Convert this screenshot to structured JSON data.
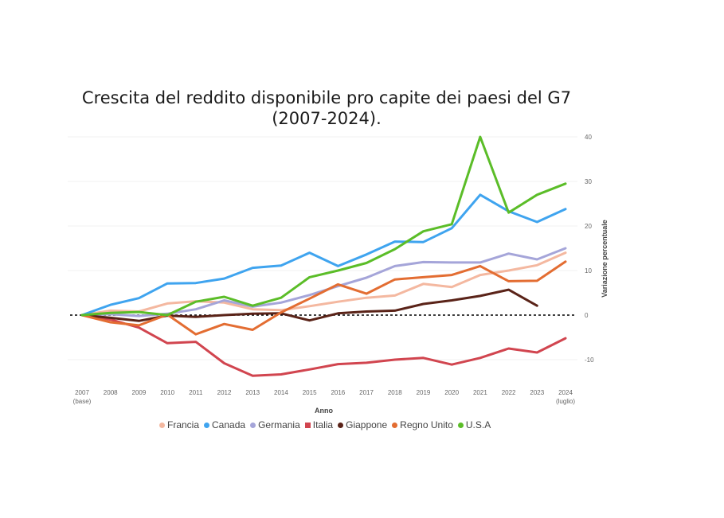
{
  "chart_data": {
    "type": "line",
    "title_line1": "Crescita del reddito disponibile pro capite dei paesi del G7",
    "title_line2": "(2007-2024).",
    "xlabel": "Anno",
    "ylabel": "Variazione percentuale",
    "x": [
      "2007",
      "2008",
      "2009",
      "2010",
      "2011",
      "2012",
      "2013",
      "2014",
      "2015",
      "2016",
      "2017",
      "2018",
      "2019",
      "2020",
      "2021",
      "2022",
      "2023",
      "2024"
    ],
    "x_sublabels": {
      "0": "(base)",
      "17": "(luglio)"
    },
    "ylim": [
      -16,
      43
    ],
    "yticks": [
      -10,
      0,
      10,
      20,
      30,
      40
    ],
    "y_axis_position": "right",
    "baseline": 0,
    "legend_position": "bottom",
    "series": [
      {
        "name": "Francia",
        "color": "#f4b8a0",
        "values": [
          0,
          1.0,
          0.8,
          2.6,
          3.1,
          2.8,
          1.3,
          1.1,
          2.0,
          3.0,
          3.9,
          4.4,
          7.0,
          6.3,
          9.0,
          10.0,
          11.2,
          14.0
        ]
      },
      {
        "name": "Canada",
        "color": "#3fa4ef",
        "values": [
          0,
          2.3,
          3.8,
          7.1,
          7.2,
          8.2,
          10.6,
          11.1,
          14.0,
          11.0,
          13.6,
          16.5,
          16.4,
          19.5,
          27.0,
          23.3,
          20.9,
          23.8
        ]
      },
      {
        "name": "Germania",
        "color": "#a5a5d9",
        "values": [
          0,
          0.2,
          -0.2,
          0.3,
          1.3,
          3.3,
          1.9,
          2.8,
          4.5,
          6.5,
          8.4,
          11.0,
          11.9,
          11.8,
          11.8,
          13.8,
          12.5,
          15.0
        ]
      },
      {
        "name": "Italia",
        "color": "#d1454f",
        "values": [
          0,
          -1.0,
          -2.8,
          -6.3,
          -6.0,
          -10.8,
          -13.6,
          -13.3,
          -12.2,
          -11.0,
          -10.7,
          -10.0,
          -9.6,
          -11.1,
          -9.6,
          -7.5,
          -8.4,
          -5.2
        ]
      },
      {
        "name": "Giappone",
        "color": "#5a2318",
        "values": [
          0,
          -0.6,
          -1.3,
          -0.1,
          -0.4,
          0.0,
          0.3,
          0.4,
          -1.2,
          0.4,
          0.8,
          1.0,
          2.5,
          3.3,
          4.3,
          5.7,
          2.1,
          null
        ]
      },
      {
        "name": "Regno Unito",
        "color": "#e36d32",
        "values": [
          0,
          -1.6,
          -2.3,
          0.1,
          -4.3,
          -2.0,
          -3.3,
          0.6,
          3.7,
          6.9,
          4.8,
          8.0,
          8.5,
          9.0,
          11.0,
          7.6,
          7.7,
          12.0
        ]
      },
      {
        "name": "U.S.A",
        "color": "#5bbd28",
        "values": [
          0,
          0.5,
          0.7,
          0.0,
          3.0,
          4.1,
          2.1,
          3.9,
          8.5,
          10.0,
          11.7,
          14.8,
          18.8,
          20.4,
          40.0,
          23.0,
          27.0,
          29.5
        ]
      }
    ]
  }
}
